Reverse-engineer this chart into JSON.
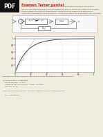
{
  "title": "Examen Tercer parcial",
  "title_color": "#dd2222",
  "background_color": "#f0ece0",
  "pdf_bg": "#111111",
  "pdf_text": "PDF",
  "body_text": [
    "Sistema térmico tipo utilizando un regulador PID, como se muestra en la figura, incluyendo el",
    "transductor de temperatura de función de transferencia Ht(s). El modelo del sistema es el ecuación",
    "unitaria (sistema G(s)/H(s)) en cadena abierta, siendo esta la de la figura en la parte inferior.",
    "Utilizando el procedimiento de Ziegler-Nichols, encontrar los valores de los parámetros del controlador."
  ],
  "answer_text": [
    "Respuesta a la gráfica, podemos observar que se tiene las tangentes en el grafo de función:",
    "",
    "No se tiene punto = Parámetros :",
    "    Tiempo de corte = T=Cta",
    "    Cambio de valor al valor final = Tu/Te = 500 línea",
    "    Ganancia: 0.011",
    "",
    "Si se calcula su Ziegler-Nichols, estos es el método Z-N para un controlador PID:",
    "",
    "    Kp = 0.45 (Ku/min)"
  ],
  "curve_color": "#444444",
  "grid_color": "#dddddd",
  "plot_bg": "#ffffff"
}
